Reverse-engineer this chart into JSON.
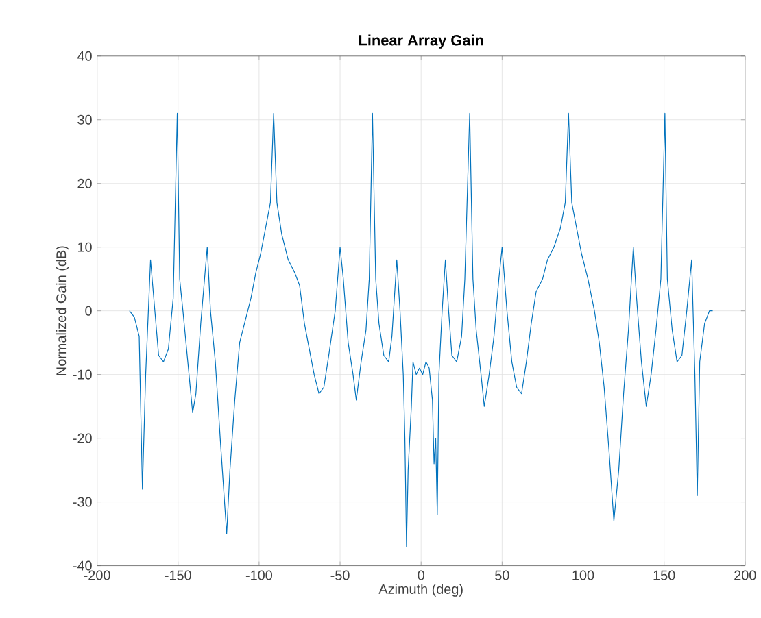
{
  "chart_data": {
    "type": "line",
    "title": "Linear Array Gain",
    "xlabel": "Azimuth (deg)",
    "ylabel": "Normalized Gain (dB)",
    "xlim": [
      -200,
      200
    ],
    "ylim": [
      -40,
      40
    ],
    "xticks": [
      -200,
      -150,
      -100,
      -50,
      0,
      50,
      100,
      150,
      200
    ],
    "yticks": [
      -40,
      -30,
      -20,
      -10,
      0,
      10,
      20,
      30,
      40
    ],
    "grid": true,
    "series": [
      {
        "color": "#0072bd",
        "x": [
          -180,
          -177,
          -174,
          -172,
          -170,
          -167,
          -165,
          -162,
          -159,
          -156,
          -153,
          -150.5,
          -149,
          -147,
          -144,
          -141,
          -139,
          -136,
          -132,
          -130,
          -127,
          -124,
          -120,
          -118,
          -115,
          -112,
          -108,
          -105,
          -102,
          -99,
          -96,
          -93,
          -91,
          -89,
          -86,
          -82,
          -78,
          -75,
          -72,
          -69,
          -66,
          -63,
          -60,
          -57,
          -53,
          -50,
          -48,
          -45,
          -42,
          -40,
          -37,
          -34,
          -32,
          -30,
          -28,
          -26,
          -23,
          -20,
          -18,
          -15,
          -13,
          -11,
          -10,
          -9,
          -8,
          -7,
          -6,
          -5,
          -3,
          -1,
          1,
          3,
          5,
          7,
          8,
          9,
          10,
          11,
          13,
          15,
          17,
          19,
          22,
          25,
          27,
          30,
          32,
          34,
          37,
          39,
          42,
          45,
          48,
          50,
          53,
          56,
          59,
          62,
          65,
          68,
          71,
          75,
          78,
          82,
          86,
          89,
          91,
          93,
          96,
          99,
          103,
          107,
          110,
          113,
          116,
          119,
          122,
          125,
          128,
          131,
          133,
          136,
          139,
          142,
          145,
          148,
          150.5,
          152,
          155,
          158,
          161,
          164,
          167,
          169,
          170.5,
          172,
          175,
          178,
          180
        ],
        "values": [
          0,
          -1,
          -4,
          -28,
          -10,
          8,
          2,
          -7,
          -8,
          -6,
          2,
          31,
          5,
          0,
          -8,
          -16,
          -13,
          -2,
          10,
          0,
          -8,
          -20,
          -35,
          -25,
          -14,
          -5,
          -1,
          2,
          6,
          9,
          13,
          17,
          31,
          17,
          12,
          8,
          6,
          4,
          -2,
          -6,
          -10,
          -13,
          -12,
          -7,
          0,
          10,
          5,
          -5,
          -10,
          -14,
          -8,
          -3,
          5,
          31,
          5,
          -2,
          -7,
          -8,
          -4,
          8,
          0,
          -10,
          -20,
          -37,
          -25,
          -20,
          -15,
          -8,
          -10,
          -9,
          -10,
          -8,
          -9,
          -14,
          -24,
          -20,
          -32,
          -10,
          0,
          8,
          0,
          -7,
          -8,
          -4,
          5,
          31,
          5,
          -3,
          -10,
          -15,
          -10,
          -4,
          5,
          10,
          0,
          -8,
          -12,
          -13,
          -8,
          -2,
          3,
          5,
          8,
          10,
          13,
          17,
          31,
          17,
          13,
          9,
          5,
          0,
          -5,
          -12,
          -22,
          -33,
          -25,
          -13,
          -3,
          10,
          2,
          -8,
          -15,
          -10,
          -3,
          5,
          31,
          5,
          -3,
          -8,
          -7,
          0,
          8,
          -10,
          -29,
          -8,
          -2,
          0,
          0
        ]
      }
    ]
  }
}
